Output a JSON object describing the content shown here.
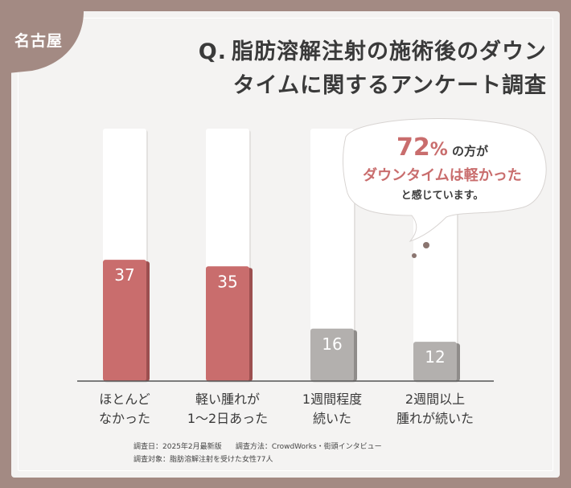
{
  "badge": {
    "label": "名古屋"
  },
  "title": {
    "prefix": "Q.",
    "line1": "脂肪溶解注射の施術後のダウン",
    "line2": "タイムに関するアンケート調査"
  },
  "callout": {
    "percent": "72",
    "percent_unit": "%",
    "line1_suffix": "の方が",
    "line2": "ダウンタイムは軽かった",
    "line3": "と感じています。"
  },
  "footer": {
    "date": "調査日：2025年2月最新版",
    "method": "調査方法：CrowdWorks・街頭インタビュー",
    "target": "調査対象：脂肪溶解注射を受けた女性77人"
  },
  "colors": {
    "highlight": "#c96d6d",
    "muted": "#b3b0ae",
    "title": "#3a3a3a",
    "frame": "#a38a83"
  },
  "chart_data": {
    "type": "bar",
    "categories": [
      "ほとんど\nなかった",
      "軽い腫れが\n1〜2日あった",
      "1週間程度\n続いた",
      "2週間以上\n腫れが続いた"
    ],
    "values": [
      37,
      35,
      16,
      12
    ],
    "highlighted": [
      true,
      true,
      false,
      false
    ],
    "ylim": [
      0,
      77
    ]
  }
}
